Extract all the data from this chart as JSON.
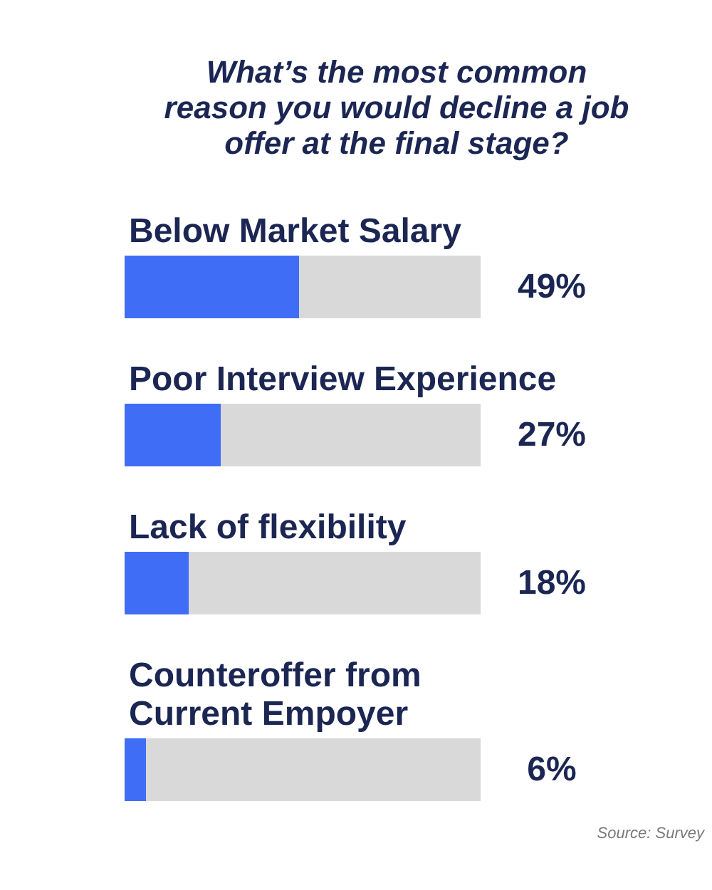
{
  "chart_data": {
    "type": "bar",
    "orientation": "horizontal",
    "stacked": true,
    "title": "What’s the most common\nreason you would decline a job\noffer at the final stage?",
    "categories": [
      "Below Market Salary",
      "Poor Interview Experience",
      "Lack of flexibility",
      "Counteroffer from\nCurrent Empoyer"
    ],
    "series": [
      {
        "color": "#3f6df5",
        "values": [
          49,
          27,
          18,
          6
        ],
        "value_labels": [
          "49%",
          "27%",
          "18%",
          "6%"
        ]
      },
      {
        "color": "#d9d9d9",
        "values": [
          51,
          73,
          82,
          94
        ]
      }
    ],
    "xlim": [
      0,
      100
    ],
    "annotations": [
      "Source: Survey"
    ]
  }
}
